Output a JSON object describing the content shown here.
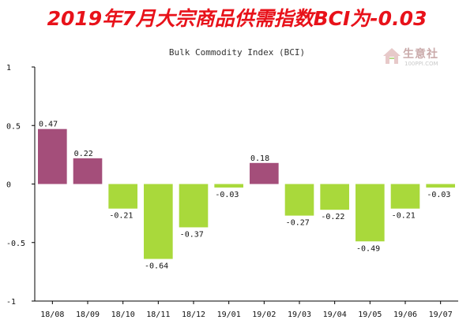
{
  "headline": "2019年7月大宗商品供需指数BCI为-0.03",
  "logo": {
    "text": "生意社",
    "sub": "100PPI.COM"
  },
  "colors": {
    "positive": "#a44e7a",
    "negative": "#a9d93b",
    "axis": "#000000",
    "headline": "#e8121a"
  },
  "chart_data": {
    "type": "bar",
    "title": "Bulk Commodity Index (BCI)",
    "xlabel": "",
    "ylabel": "",
    "categories": [
      "18/08",
      "18/09",
      "18/10",
      "18/11",
      "18/12",
      "19/01",
      "19/02",
      "19/03",
      "19/04",
      "19/05",
      "19/06",
      "19/07"
    ],
    "values": [
      0.47,
      0.22,
      -0.21,
      -0.64,
      -0.37,
      -0.03,
      0.18,
      -0.27,
      -0.22,
      -0.49,
      -0.21,
      -0.03
    ],
    "value_labels": [
      "0.47",
      "0.22",
      "-0.21",
      "-0.64",
      "-0.37",
      "-0.03",
      "0.18",
      "-0.27",
      "-0.22",
      "-0.49",
      "-0.21",
      "-0.03"
    ],
    "ylim": [
      -1,
      1
    ],
    "yticks": [
      1,
      0.5,
      0,
      -0.5,
      -1
    ],
    "ytick_labels": [
      "1",
      "0.5",
      "0",
      "-0.5",
      "-1"
    ],
    "grid": false,
    "legend": "none"
  }
}
